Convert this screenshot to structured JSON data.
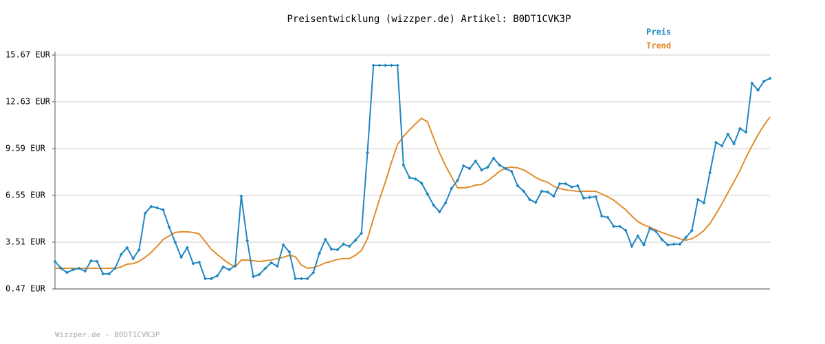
{
  "chart_data": {
    "type": "line",
    "title": "Preisentwicklung (wizzper.de) Artikel: B0DT1CVK3P",
    "footer": "Wizzper.de - B0DT1CVK3P",
    "categories": [
      null,
      null,
      null,
      null,
      null,
      null,
      null,
      null,
      null,
      null,
      null,
      null,
      null,
      null,
      null,
      null,
      null,
      null,
      null,
      null,
      null,
      null,
      null,
      null,
      null,
      null,
      null,
      null,
      null,
      null,
      null,
      null,
      null,
      null,
      null,
      null,
      null,
      null,
      null,
      null,
      null,
      null,
      null,
      null,
      null,
      null,
      null,
      null,
      null,
      null,
      null,
      null,
      null,
      null,
      null,
      null,
      null,
      null,
      null,
      null,
      null,
      null,
      null,
      null,
      null,
      null,
      null,
      null,
      null,
      null,
      null,
      null,
      null,
      null,
      null,
      null,
      null,
      null,
      null,
      null,
      null,
      null,
      null,
      null,
      null,
      null,
      null,
      null,
      null,
      null,
      null,
      null,
      null,
      null,
      null,
      null,
      null,
      null,
      null,
      null,
      null,
      null,
      null,
      null,
      null,
      null,
      null,
      null,
      null,
      null,
      null,
      null,
      null,
      null,
      null,
      null,
      null,
      null,
      null,
      null
    ],
    "series": [
      {
        "name": "Preis",
        "color": "#1f86c1",
        "markers": true,
        "values": [
          2.26,
          1.81,
          1.54,
          1.72,
          1.81,
          1.63,
          2.3,
          2.26,
          1.45,
          1.45,
          1.81,
          2.71,
          3.15,
          2.44,
          3.02,
          5.39,
          5.83,
          5.74,
          5.61,
          4.49,
          3.51,
          2.53,
          3.15,
          2.12,
          2.21,
          1.14,
          1.14,
          1.32,
          1.9,
          1.72,
          1.99,
          6.5,
          3.6,
          1.27,
          1.41,
          1.81,
          2.17,
          1.95,
          3.33,
          2.88,
          1.14,
          1.14,
          1.14,
          1.54,
          2.79,
          3.69,
          3.06,
          3.02,
          3.38,
          3.24,
          3.64,
          4.09,
          9.32,
          15.0,
          15.0,
          15.0,
          15.0,
          15.0,
          8.52,
          7.71,
          7.62,
          7.35,
          6.64,
          5.92,
          5.48,
          6.06,
          7.0,
          7.53,
          8.47,
          8.29,
          8.78,
          8.2,
          8.38,
          8.96,
          8.52,
          8.29,
          8.11,
          7.18,
          6.82,
          6.28,
          6.1,
          6.82,
          6.77,
          6.5,
          7.31,
          7.31,
          7.09,
          7.18,
          6.37,
          6.42,
          6.46,
          5.21,
          5.12,
          4.54,
          4.54,
          4.27,
          3.24,
          3.91,
          3.33,
          4.4,
          4.22,
          3.69,
          3.33,
          3.38,
          3.38,
          3.82,
          4.27,
          6.28,
          6.06,
          8.02,
          9.99,
          9.77,
          10.53,
          9.9,
          10.89,
          10.66,
          13.84,
          13.39,
          13.97,
          14.15
        ]
      },
      {
        "name": "Trend",
        "color": "#e08b2a",
        "markers": false,
        "values": [
          1.81,
          1.81,
          1.81,
          1.81,
          1.81,
          1.81,
          1.81,
          1.81,
          1.81,
          1.81,
          1.81,
          1.9,
          2.08,
          2.12,
          2.26,
          2.53,
          2.84,
          3.24,
          3.69,
          3.91,
          4.14,
          4.18,
          4.18,
          4.14,
          4.05,
          3.55,
          3.06,
          2.71,
          2.39,
          2.12,
          1.9,
          2.35,
          2.35,
          2.3,
          2.26,
          2.3,
          2.35,
          2.44,
          2.53,
          2.66,
          2.57,
          2.03,
          1.81,
          1.86,
          1.99,
          2.17,
          2.26,
          2.39,
          2.44,
          2.44,
          2.66,
          2.97,
          3.73,
          5.03,
          6.28,
          7.44,
          8.69,
          9.86,
          10.39,
          10.8,
          11.2,
          11.56,
          11.33,
          10.3,
          9.32,
          8.47,
          7.76,
          7.04,
          7.04,
          7.09,
          7.22,
          7.26,
          7.49,
          7.8,
          8.11,
          8.34,
          8.38,
          8.34,
          8.2,
          7.98,
          7.71,
          7.53,
          7.4,
          7.13,
          7.0,
          6.91,
          6.86,
          6.82,
          6.82,
          6.82,
          6.82,
          6.64,
          6.46,
          6.24,
          5.92,
          5.61,
          5.21,
          4.85,
          4.63,
          4.49,
          4.31,
          4.14,
          4.0,
          3.87,
          3.73,
          3.64,
          3.73,
          3.96,
          4.27,
          4.72,
          5.34,
          6.01,
          6.73,
          7.44,
          8.16,
          9.01,
          9.77,
          10.48,
          11.11,
          11.65
        ]
      }
    ],
    "ylim": [
      0.47,
      15.67
    ],
    "yticks": [
      {
        "value": 0.47,
        "label": "0.47 EUR"
      },
      {
        "value": 3.51,
        "label": "3.51 EUR"
      },
      {
        "value": 6.55,
        "label": "6.55 EUR"
      },
      {
        "value": 9.59,
        "label": "9.59 EUR"
      },
      {
        "value": 12.63,
        "label": "12.63 EUR"
      },
      {
        "value": 15.67,
        "label": "15.67 EUR"
      }
    ],
    "grid": true,
    "legend": "top-right"
  }
}
